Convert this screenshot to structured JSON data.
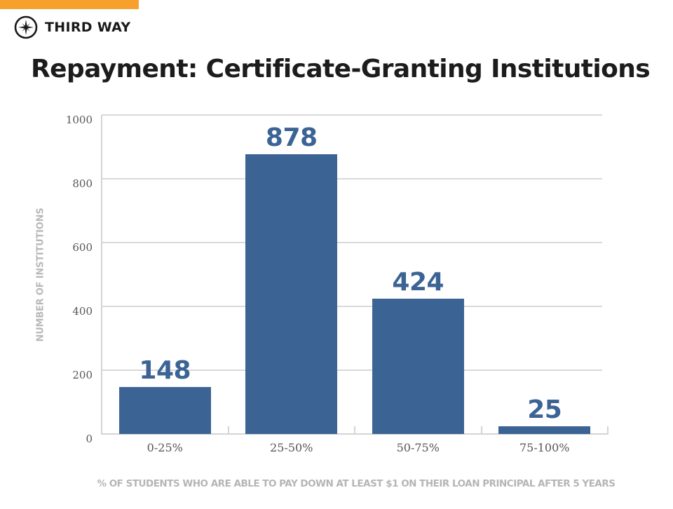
{
  "brand": {
    "name": "THIRD WAY",
    "icon": "compass-star-icon",
    "accent_color": "#f7a12c"
  },
  "chart_data": {
    "type": "bar",
    "title": "Repayment: Certificate-Granting Institutions",
    "categories": [
      "0-25%",
      "25-50%",
      "50-75%",
      "75-100%"
    ],
    "values": [
      148,
      878,
      424,
      25
    ],
    "value_labels": [
      "148",
      "878",
      "424",
      "25"
    ],
    "xlabel": "% OF STUDENTS WHO ARE ABLE TO PAY DOWN AT LEAST $1 ON THEIR LOAN PRINCIPAL AFTER 5 YEARS",
    "ylabel": "NUMBER OF INSTITUTIONS",
    "ylim": [
      0,
      1000
    ],
    "yticks": [
      0,
      200,
      400,
      600,
      800,
      1000
    ],
    "ytick_labels": [
      "0",
      "200",
      "400",
      "600",
      "800",
      "1000"
    ],
    "grid": true,
    "legend": null,
    "bar_color": "#3b6495"
  }
}
